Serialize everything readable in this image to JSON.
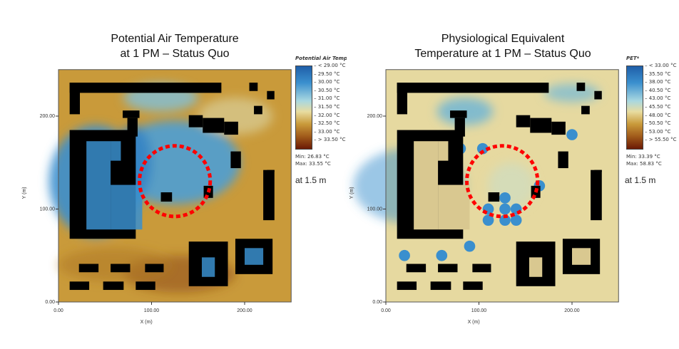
{
  "chart_data": [
    {
      "type": "heatmap",
      "title": "Potential Air Temperature\nat 1 PM – Status Quo",
      "title_lines": [
        "Potential Air Temperature",
        "at 1 PM – Status Quo"
      ],
      "xlabel": "X (m)",
      "ylabel": "Y (m)",
      "xlim": [
        0,
        250
      ],
      "ylim": [
        0,
        250
      ],
      "xticks": [
        "0.00",
        "100.00",
        "200.00"
      ],
      "yticks": [
        "0.00",
        "100.00",
        "200.00"
      ],
      "legend": {
        "title": "Potential Air Tempe",
        "labels": [
          "< 29.00 °C",
          "29.50 °C",
          "30.00 °C",
          "30.50 °C",
          "31.00 °C",
          "31.50 °C",
          "32.00 °C",
          "32.50 °C",
          "33.00 °C",
          "> 33.50 °C"
        ],
        "min": "Min: 26.83 °C",
        "max": "Max: 33.55 °C",
        "placement": "right"
      },
      "height_note": "at 1.5 m",
      "colors": {
        "cool": "#3a8fce",
        "warm": "#c99a3a",
        "hot": "#8a3a0a",
        "building": "#000000",
        "highlight": "#ff0000"
      }
    },
    {
      "type": "heatmap",
      "title_lines": [
        "Physiological Equivalent",
        "Temperature at 1 PM – Status Quo"
      ],
      "xlabel": "X (m)",
      "ylabel": "Y (m)",
      "xlim": [
        0,
        250
      ],
      "ylim": [
        0,
        250
      ],
      "xticks": [
        "0.00",
        "100.00",
        "200.00"
      ],
      "yticks": [
        "0.00",
        "100.00",
        "200.00"
      ],
      "legend": {
        "title": "PET*",
        "labels": [
          "< 33.00 °C",
          "35.50 °C",
          "38.00 °C",
          "40.50 °C",
          "43.00 °C",
          "45.50 °C",
          "48.00 °C",
          "50.50 °C",
          "53.00 °C",
          "> 55.50 °C"
        ],
        "min": "Min: 33.39 °C",
        "max": "Max: 58.83 °C",
        "placement": "right"
      },
      "height_note": "at 1.5 m",
      "colors": {
        "cool": "#3a8fce",
        "warm": "#e6d9a0",
        "hot": "#b07020",
        "building": "#000000",
        "highlight": "#ff0000"
      }
    }
  ]
}
